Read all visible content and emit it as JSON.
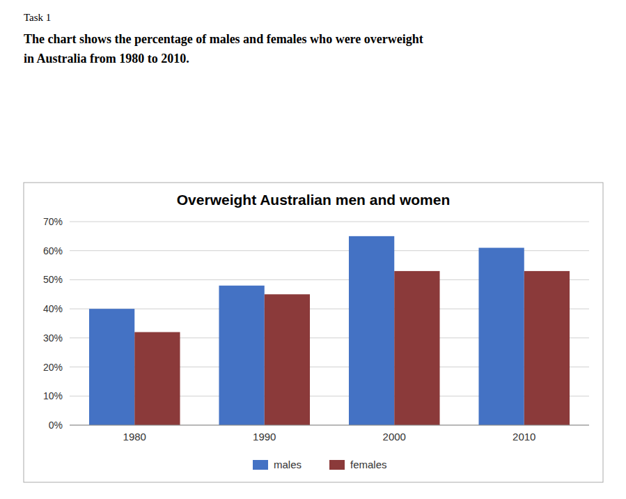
{
  "chart_data": {
    "type": "bar",
    "title": "Overweight Australian men and women",
    "annotations": [
      "Task 1",
      "The chart shows the percentage of males and females who were overweight",
      "in Australia from 1980 to 2010."
    ],
    "categories": [
      "1980",
      "1990",
      "2000",
      "2010"
    ],
    "series": [
      {
        "name": "males",
        "color": "#4472C4",
        "values": [
          40,
          48,
          65,
          61
        ]
      },
      {
        "name": "females",
        "color": "#8B3A3A",
        "values": [
          32,
          45,
          53,
          53
        ]
      }
    ],
    "ylim": [
      0,
      70
    ],
    "yticks": [
      {
        "value": 0,
        "label": "0%"
      },
      {
        "value": 10,
        "label": "10%"
      },
      {
        "value": 20,
        "label": "20%"
      },
      {
        "value": 30,
        "label": "30%"
      },
      {
        "value": 40,
        "label": "40%"
      },
      {
        "value": 50,
        "label": "50%"
      },
      {
        "value": 60,
        "label": "60%"
      },
      {
        "value": 70,
        "label": "70%"
      }
    ],
    "grid": true,
    "legend": "bottom"
  }
}
